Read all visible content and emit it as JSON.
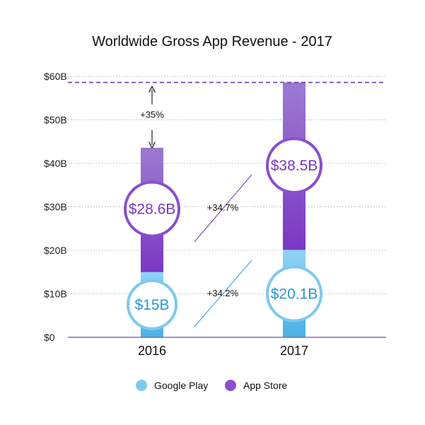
{
  "chart_data": {
    "type": "bar",
    "stacked": true,
    "title": "Worldwide Gross App Revenue - 2017",
    "categories": [
      "2016",
      "2017"
    ],
    "series": [
      {
        "name": "Google Play",
        "values": [
          15,
          20.1
        ],
        "value_labels": [
          "$15B",
          "$20.1B"
        ],
        "color": "#5cb8ea"
      },
      {
        "name": "App Store",
        "values": [
          28.6,
          38.5
        ],
        "value_labels": [
          "$28.6B",
          "$38.5B"
        ],
        "color": "#7e3fc6"
      }
    ],
    "ylim": [
      0,
      60
    ],
    "yticks": [
      {
        "value": 0,
        "label": "$0"
      },
      {
        "value": 10,
        "label": "$10B"
      },
      {
        "value": 20,
        "label": "$20B"
      },
      {
        "value": 30,
        "label": "$30B"
      },
      {
        "value": 40,
        "label": "$40B"
      },
      {
        "value": 50,
        "label": "$50B"
      },
      {
        "value": 60,
        "label": "$60B"
      }
    ],
    "grid": true,
    "legend_position": "bottom",
    "annotations": {
      "total_growth": "+35%",
      "app_store_growth": "+34.7%",
      "google_play_growth": "+34.2%"
    },
    "colors": {
      "google_play_light": "#8ed2f5",
      "google_play_dark": "#4db3e6",
      "app_store_light": "#9c79d0",
      "app_store_dark": "#7c3cc4",
      "reference_line": "#6a3bb0",
      "growth_line": "#24a3d6",
      "axis": "#7d6bb5"
    }
  }
}
